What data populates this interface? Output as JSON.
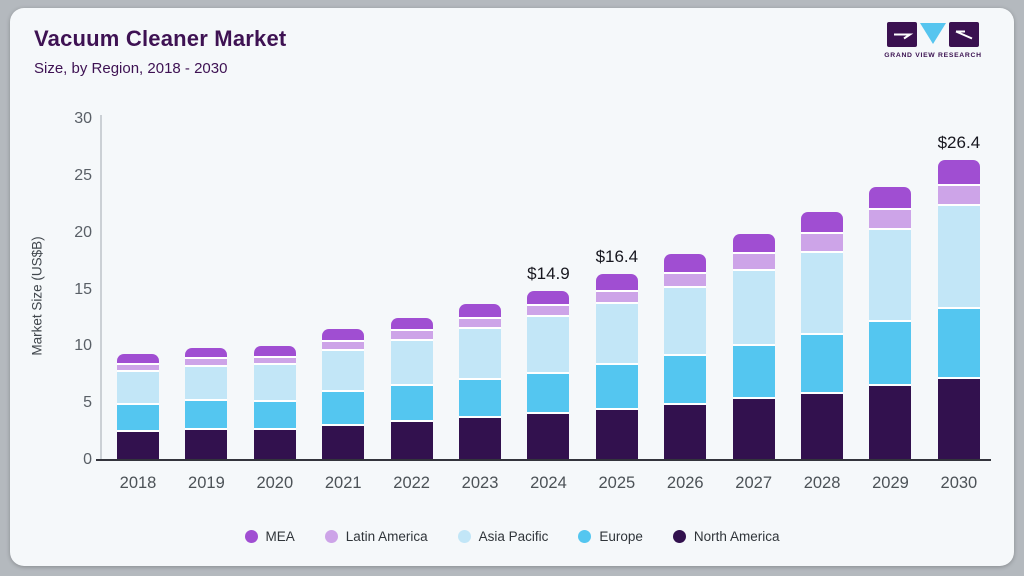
{
  "header": {
    "title": "Vacuum Cleaner Market",
    "subtitle": "Size, by Region, 2018 - 2030",
    "logo_text": "GRAND VIEW RESEARCH",
    "logo_colors": {
      "square": "#3a1150",
      "triangle": "#56c5ef"
    }
  },
  "chart_data": {
    "type": "bar",
    "stacked": true,
    "title": "Vacuum Cleaner Market",
    "subtitle": "Size, by Region, 2018 - 2030",
    "xlabel": "",
    "ylabel": "Market Size (US$B)",
    "ylim": [
      0,
      30
    ],
    "yticks": [
      0,
      5,
      10,
      15,
      20,
      25,
      30
    ],
    "grid": false,
    "legend_position": "bottom",
    "categories": [
      "2018",
      "2019",
      "2020",
      "2021",
      "2022",
      "2023",
      "2024",
      "2025",
      "2026",
      "2027",
      "2028",
      "2029",
      "2030"
    ],
    "series": [
      {
        "name": "North America",
        "color": "#32114e",
        "values": [
          2.6,
          2.8,
          2.85,
          3.2,
          3.5,
          3.85,
          4.2,
          4.55,
          5.0,
          5.5,
          6.0,
          6.7,
          7.3
        ]
      },
      {
        "name": "Europe",
        "color": "#54c6f0",
        "values": [
          2.4,
          2.55,
          2.45,
          2.95,
          3.15,
          3.35,
          3.55,
          3.95,
          4.35,
          4.7,
          5.2,
          5.6,
          6.2
        ]
      },
      {
        "name": "Asia Pacific",
        "color": "#c2e6f7",
        "values": [
          2.9,
          3.0,
          3.2,
          3.6,
          4.0,
          4.5,
          5.0,
          5.4,
          6.0,
          6.6,
          7.2,
          8.1,
          9.0
        ]
      },
      {
        "name": "Latin America",
        "color": "#cda4e8",
        "values": [
          0.6,
          0.7,
          0.65,
          0.8,
          0.85,
          0.9,
          1.0,
          1.05,
          1.2,
          1.5,
          1.7,
          1.8,
          1.8
        ]
      },
      {
        "name": "MEA",
        "color": "#a04ed2",
        "values": [
          0.8,
          0.85,
          0.85,
          0.95,
          1.0,
          1.1,
          1.15,
          1.45,
          1.55,
          1.6,
          1.7,
          1.8,
          2.1
        ]
      }
    ],
    "totals": [
      9.3,
      9.9,
      10.0,
      11.5,
      12.5,
      13.7,
      14.9,
      16.4,
      18.1,
      19.9,
      21.8,
      24.0,
      26.4
    ],
    "annotations": [
      {
        "category": "2024",
        "label": "$14.9"
      },
      {
        "category": "2025",
        "label": "$16.4"
      },
      {
        "category": "2030",
        "label": "$26.4"
      }
    ],
    "legend": [
      "MEA",
      "Latin America",
      "Asia Pacific",
      "Europe",
      "North America"
    ]
  }
}
